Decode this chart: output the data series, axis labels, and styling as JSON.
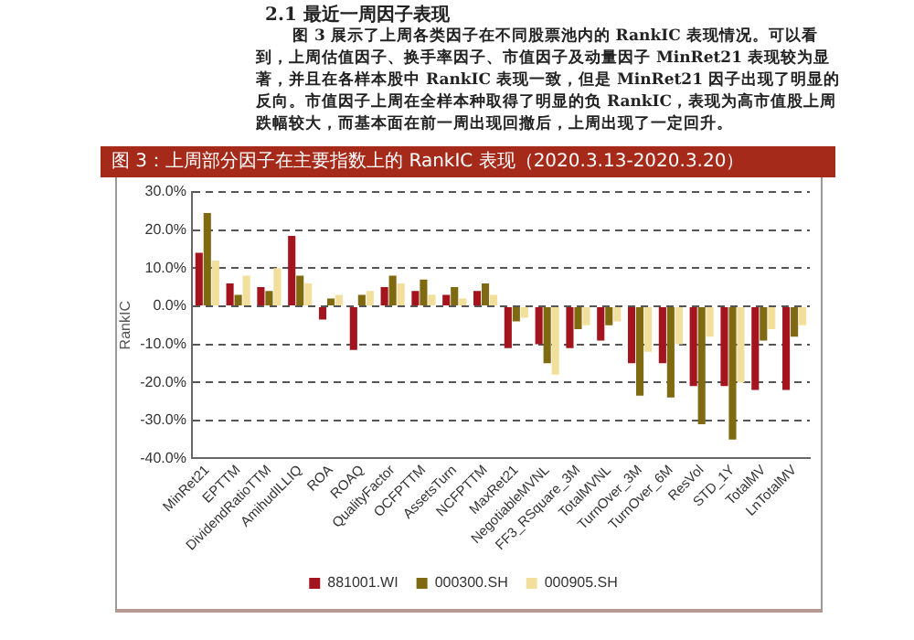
{
  "chart_data": {
    "type": "bar",
    "title": "图 3：上周部分因子在主要指数上的 RankIC 表现（2020.3.13-2020.3.20）",
    "ylabel": "RankIC",
    "annotations": [
      "2.1 最近一周因子表现",
      "图 3 展示了上周各类因子在不同股票池内的 RankIC 表现情况。可以看到，上周估值因子、换手率因子、市值因子及动量因子 MinRet21 表现较为显著，并且在各样本股中 RankIC 表现一致，但是 MinRet21 因子出现了明显的反向。市值因子上周在全样本种取得了明显的负 RankIC，表现为高市值股上周跌幅较大，而基本面在前一周出现回撤后，上周出现了一定回升。"
    ],
    "categories": [
      "MinRet21",
      "EPTTM",
      "DividendRatioTTM",
      "AmihudILLIQ",
      "ROA",
      "ROAQ",
      "QualityFactor",
      "OCFPTTM",
      "AssetsTurn",
      "NCFPTTM",
      "MaxRet21",
      "NegotiableMVNL",
      "FF3_RSquare_3M",
      "TotalMVNL",
      "TurnOver_3M",
      "TurnOver_6M",
      "ResVol",
      "STD_1Y",
      "TotalMV",
      "LnTotalMV"
    ],
    "series": [
      {
        "name": "881001.WI",
        "color": "#a3141f",
        "values": [
          14,
          6,
          5,
          18.5,
          -3.5,
          -11.5,
          5,
          4,
          3,
          4,
          -11,
          -10,
          -11,
          -9,
          -15,
          -15,
          -21,
          -21,
          -22,
          -22
        ]
      },
      {
        "name": "000300.SH",
        "color": "#7f6a12",
        "values": [
          24.5,
          3,
          4,
          8,
          2,
          3,
          8,
          7,
          5,
          6,
          -4,
          -15,
          -6,
          -5,
          -23.5,
          -24,
          -31,
          -35,
          -9,
          -8
        ]
      },
      {
        "name": "000905.SH",
        "color": "#f3df9c",
        "values": [
          12,
          8,
          10,
          6,
          3,
          4,
          6,
          3,
          2,
          3,
          -3,
          -18,
          -5,
          -4,
          -12,
          -10,
          -8,
          -20,
          -6,
          -5
        ]
      }
    ],
    "ylim": [
      -40,
      30
    ],
    "yticks": [
      {
        "value": -40,
        "label": "-40.0%"
      },
      {
        "value": -30,
        "label": "-30.0%"
      },
      {
        "value": -20,
        "label": "-20.0%"
      },
      {
        "value": -10,
        "label": "-10.0%"
      },
      {
        "value": 0,
        "label": "0.0%"
      },
      {
        "value": 10,
        "label": "10.0%"
      },
      {
        "value": 20,
        "label": "20.0%"
      },
      {
        "value": 30,
        "label": "30.0%"
      }
    ],
    "grid": "y",
    "line_style": "dashed",
    "legend": "bottom"
  }
}
